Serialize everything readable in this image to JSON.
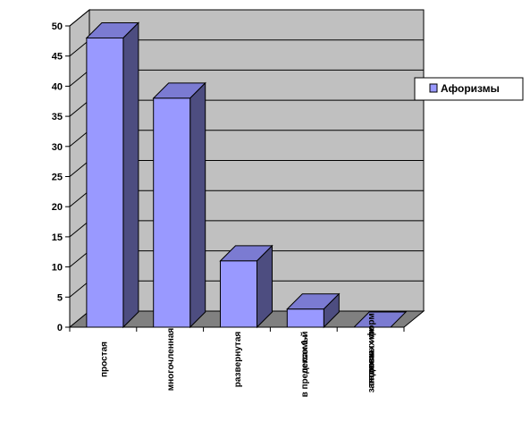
{
  "chart_data": {
    "type": "bar",
    "categories": [
      "простая",
      "многочленная",
      "развернутая",
      "в пределах 1-й лексемы",
      "антитеза залоговых или падежных форм"
    ],
    "category_lines": [
      [
        "простая"
      ],
      [
        "многочленная"
      ],
      [
        "развернутая"
      ],
      [
        "в пределах 1-й",
        "лексемы"
      ],
      [
        "антитеза",
        "залоговых или",
        "падежных форм"
      ]
    ],
    "series": [
      {
        "name": "Афоризмы",
        "values": [
          48,
          38,
          11,
          3,
          0
        ]
      }
    ],
    "ylim": [
      0,
      50
    ],
    "yticks": [
      0,
      5,
      10,
      15,
      20,
      25,
      30,
      35,
      40,
      45,
      50
    ],
    "ytick_labels": [
      "0",
      "5",
      "10",
      "15",
      "20",
      "25",
      "30",
      "35",
      "40",
      "45",
      "50"
    ],
    "grid": true,
    "three_d": true,
    "legend_position": "right",
    "colors": {
      "bar_front": "#9999ff",
      "bar_side": "#4d4d80",
      "bar_top": "#7b7bd2",
      "back_wall": "#c0c0c0",
      "floor": "#808080",
      "grid": "#000000",
      "outline": "#000000"
    }
  }
}
